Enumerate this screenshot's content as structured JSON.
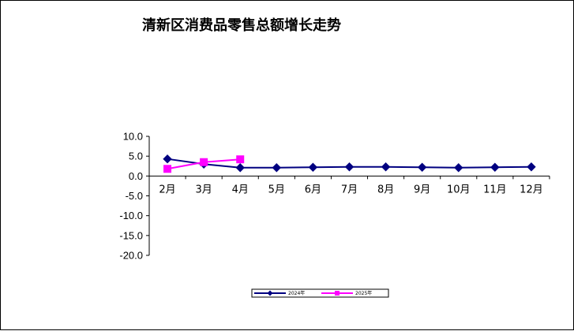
{
  "chart_data": {
    "type": "line",
    "title": "清新区消费品零售总额增长走势",
    "xlabel": "",
    "ylabel": "",
    "categories": [
      "2月",
      "3月",
      "4月",
      "5月",
      "6月",
      "7月",
      "8月",
      "9月",
      "10月",
      "11月",
      "12月"
    ],
    "yticks": [
      "10.0",
      "5.0",
      "0.0",
      "-5.0",
      "-10.0",
      "-15.0",
      "-20.0"
    ],
    "ylim": [
      -20,
      10
    ],
    "grid": false,
    "legend_position": "bottom",
    "series": [
      {
        "name": "2024年",
        "color": "#000080",
        "marker": "diamond",
        "values": [
          4.3,
          3.0,
          2.1,
          2.1,
          2.2,
          2.3,
          2.3,
          2.2,
          2.1,
          2.2,
          2.3
        ]
      },
      {
        "name": "2025年",
        "color": "#FF00FF",
        "marker": "square",
        "values": [
          1.8,
          3.5,
          4.2,
          null,
          null,
          null,
          null,
          null,
          null,
          null,
          null
        ]
      }
    ]
  }
}
